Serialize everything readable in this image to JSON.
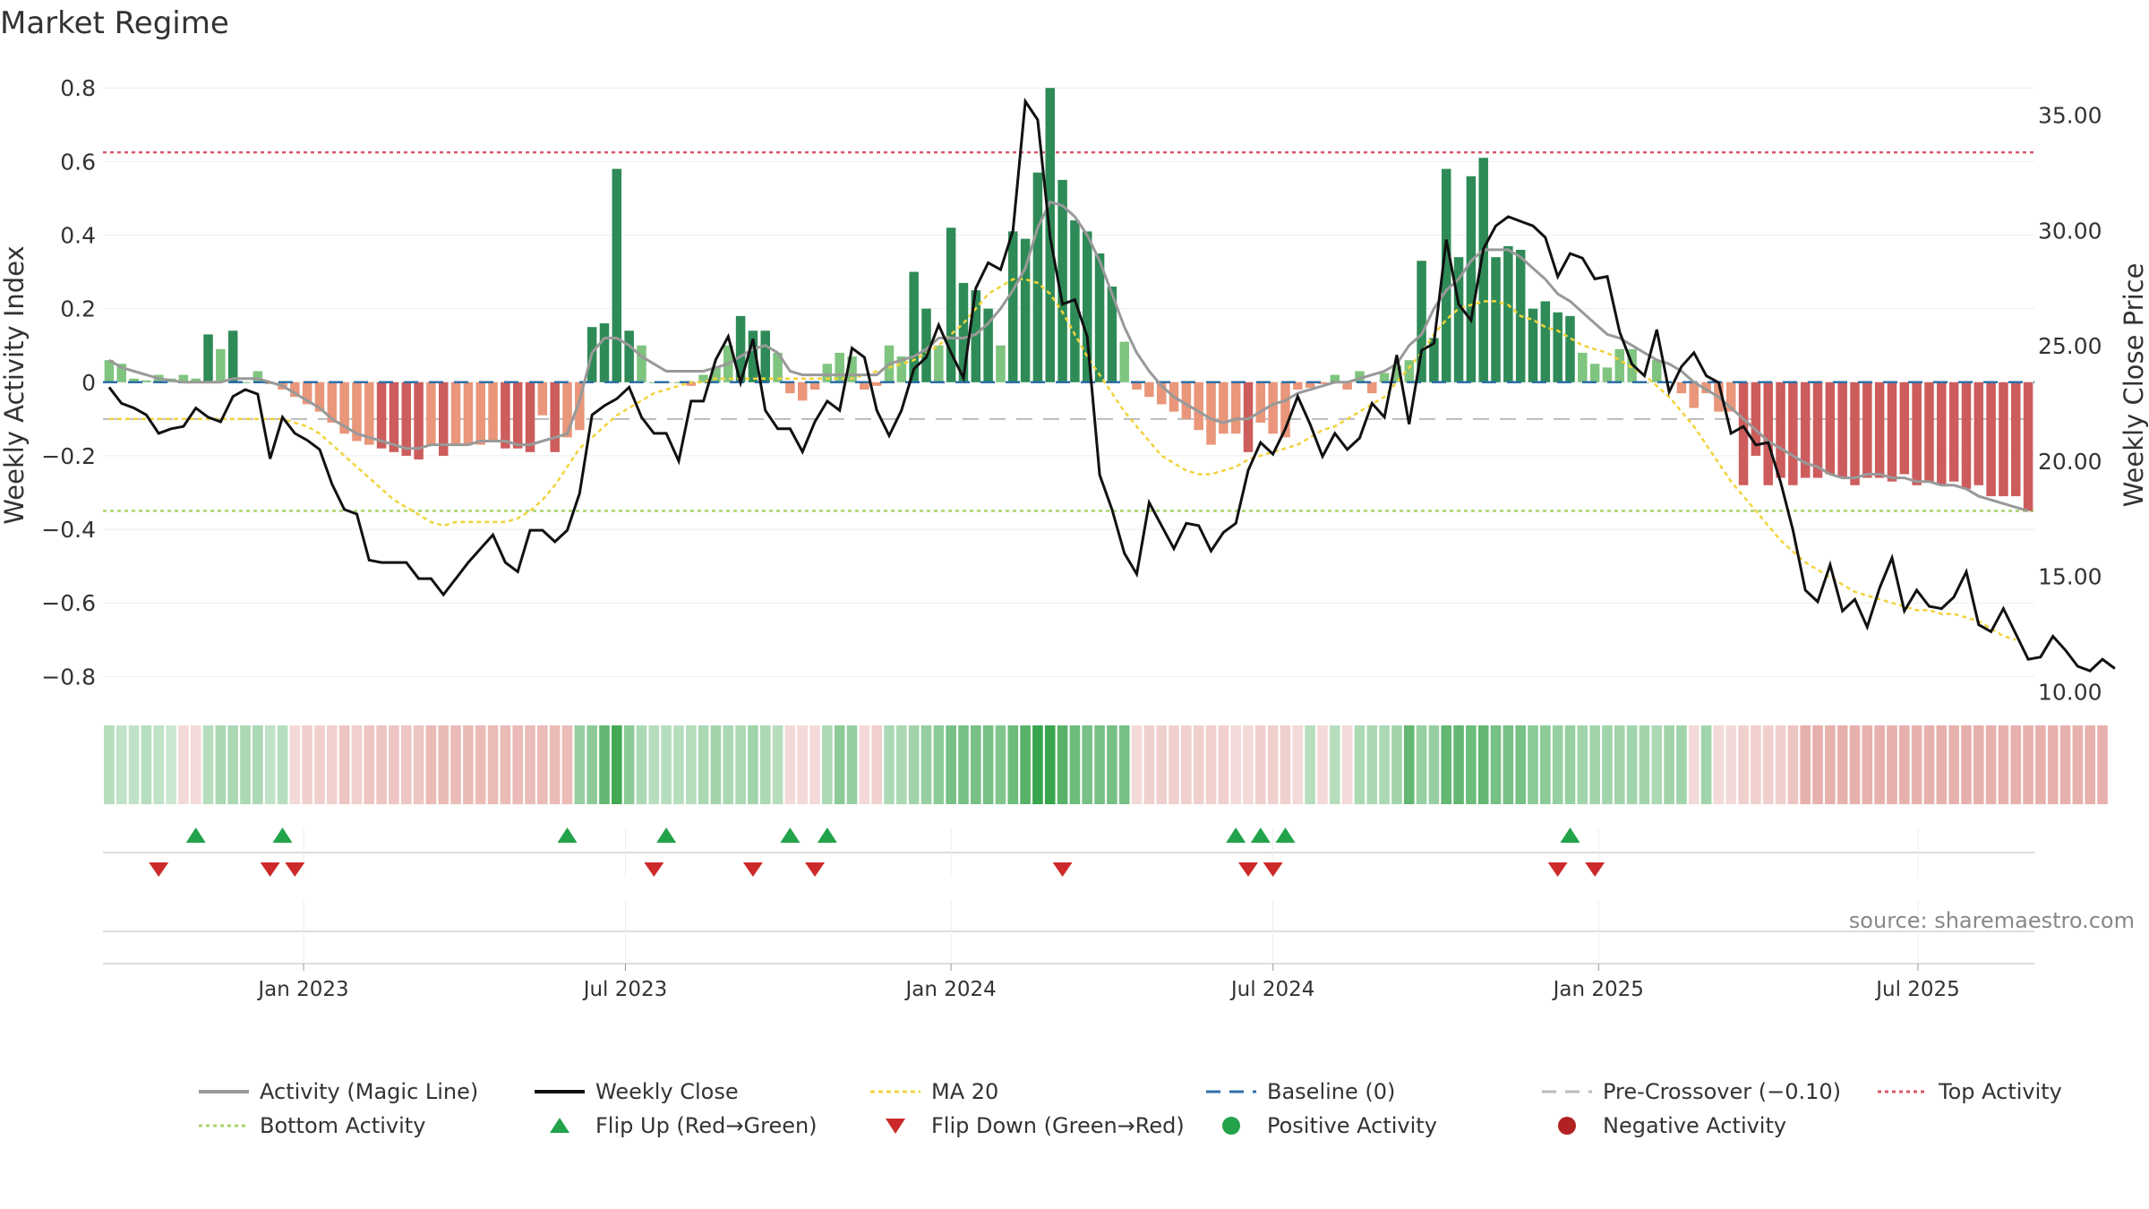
{
  "title": "Market Regime",
  "source": "source: sharemaestro.com",
  "colors": {
    "magic_line": "#999999",
    "weekly_close": "#111111",
    "ma20": "#f2d33c",
    "baseline": "#2e6fa7",
    "pre_crossover": "#bbbbbb",
    "top_activity": "#d9576a",
    "bottom_activity": "#a9d36a",
    "flip_up": "#22a34a",
    "flip_down": "#cc2a2a",
    "pos_dark": "#2e8b57",
    "pos_light": "#7fc47f",
    "neg_dark": "#cd5c5c",
    "neg_light": "#e9967a"
  },
  "legend": {
    "activity": "Activity (Magic Line)",
    "weekly_close": "Weekly Close",
    "ma20": "MA 20",
    "baseline": "Baseline (0)",
    "pre_crossover": "Pre-Crossover (−0.10)",
    "top_activity": "Top Activity",
    "bottom_activity": "Bottom Activity",
    "flip_up": "Flip Up (Red→Green)",
    "flip_down": "Flip Down (Green→Red)",
    "positive_activity": "Positive Activity",
    "negative_activity": "Negative Activity"
  },
  "chart_data": {
    "type": "bar",
    "title": "Market Regime",
    "ylabel": "Weekly Activity Index",
    "y2label": "Weekly Close Price",
    "ylim": [
      -0.86,
      0.82
    ],
    "y2lim": [
      9.7,
      36.5
    ],
    "yticks": [
      0.8,
      0.6,
      0.4,
      0.2,
      0,
      -0.2,
      -0.4,
      -0.6,
      -0.8
    ],
    "ytick_labels": [
      "0.8",
      "0.6",
      "0.4",
      "0.2",
      "0",
      "−0.2",
      "−0.4",
      "−0.6",
      "−0.8"
    ],
    "y2ticks": [
      35,
      30,
      25,
      20,
      15,
      10
    ],
    "y2tick_labels": [
      "35.00",
      "30.00",
      "25.00",
      "20.00",
      "15.00",
      "10.00"
    ],
    "xtick_labels": [
      "Jan 2023",
      "Jul 2023",
      "Jan 2024",
      "Jul 2024",
      "Jan 2025",
      "Jul 2025"
    ],
    "xtick_weeks": [
      15.7,
      41.7,
      68,
      94,
      120.3,
      146.1
    ],
    "reference_lines": {
      "baseline": 0,
      "pre_crossover": -0.1,
      "top_activity": 0.625,
      "bottom_activity": -0.35
    },
    "activity": [
      0.06,
      0.05,
      0.01,
      0.005,
      0.02,
      0.01,
      0.02,
      0.01,
      0.13,
      0.09,
      0.14,
      0.0,
      0.03,
      -0.005,
      -0.02,
      -0.04,
      -0.06,
      -0.08,
      -0.11,
      -0.14,
      -0.16,
      -0.17,
      -0.18,
      -0.19,
      -0.2,
      -0.21,
      -0.17,
      -0.2,
      -0.17,
      -0.17,
      -0.17,
      -0.16,
      -0.18,
      -0.18,
      -0.19,
      -0.09,
      -0.19,
      -0.15,
      -0.13,
      0.15,
      0.16,
      0.58,
      0.14,
      0.1,
      0.0,
      0.0,
      0.0,
      -0.01,
      0.02,
      0.04,
      0.1,
      0.18,
      0.14,
      0.14,
      0.08,
      -0.03,
      -0.05,
      -0.02,
      0.05,
      0.08,
      0.07,
      -0.02,
      -0.01,
      0.1,
      0.07,
      0.3,
      0.2,
      0.1,
      0.42,
      0.27,
      0.25,
      0.2,
      0.1,
      0.41,
      0.39,
      0.57,
      0.8,
      0.55,
      0.44,
      0.41,
      0.35,
      0.26,
      0.11,
      -0.02,
      -0.04,
      -0.06,
      -0.08,
      -0.1,
      -0.13,
      -0.17,
      -0.14,
      -0.14,
      -0.19,
      -0.11,
      -0.14,
      -0.15,
      -0.02,
      -0.015,
      -0.005,
      0.02,
      -0.02,
      0.03,
      -0.03,
      0.025,
      0.045,
      0.06,
      0.33,
      0.12,
      0.58,
      0.34,
      0.56,
      0.61,
      0.34,
      0.37,
      0.36,
      0.2,
      0.22,
      0.19,
      0.18,
      0.08,
      0.05,
      0.04,
      0.09,
      0.09,
      0.0,
      0.06,
      0.0,
      -0.03,
      -0.07,
      -0.03,
      -0.08,
      -0.08,
      -0.28,
      -0.2,
      -0.28,
      -0.26,
      -0.28,
      -0.26,
      -0.26,
      -0.25,
      -0.26,
      -0.28,
      -0.26,
      -0.26,
      -0.27,
      -0.25,
      -0.28,
      -0.27,
      -0.28,
      -0.27,
      -0.29,
      -0.28,
      -0.31,
      -0.31,
      -0.31,
      -0.35
    ],
    "magic_line": [
      0.06,
      0.04,
      0.03,
      0.02,
      0.01,
      0.005,
      0.0,
      0.0,
      0.0,
      0.0,
      0.01,
      0.01,
      0.01,
      0.0,
      -0.01,
      -0.03,
      -0.05,
      -0.07,
      -0.1,
      -0.12,
      -0.14,
      -0.15,
      -0.16,
      -0.17,
      -0.18,
      -0.18,
      -0.17,
      -0.17,
      -0.17,
      -0.17,
      -0.16,
      -0.16,
      -0.16,
      -0.17,
      -0.17,
      -0.16,
      -0.15,
      -0.14,
      -0.05,
      0.08,
      0.12,
      0.12,
      0.1,
      0.07,
      0.05,
      0.03,
      0.03,
      0.03,
      0.03,
      0.04,
      0.05,
      0.07,
      0.09,
      0.1,
      0.08,
      0.03,
      0.02,
      0.02,
      0.02,
      0.02,
      0.02,
      0.02,
      0.02,
      0.05,
      0.06,
      0.07,
      0.09,
      0.12,
      0.12,
      0.12,
      0.13,
      0.16,
      0.2,
      0.25,
      0.31,
      0.42,
      0.49,
      0.48,
      0.45,
      0.4,
      0.33,
      0.24,
      0.15,
      0.08,
      0.03,
      -0.01,
      -0.04,
      -0.06,
      -0.08,
      -0.1,
      -0.11,
      -0.1,
      -0.1,
      -0.08,
      -0.06,
      -0.05,
      -0.03,
      -0.02,
      -0.01,
      0.0,
      0.0,
      0.01,
      0.02,
      0.03,
      0.05,
      0.1,
      0.13,
      0.2,
      0.25,
      0.28,
      0.33,
      0.36,
      0.36,
      0.36,
      0.34,
      0.31,
      0.28,
      0.24,
      0.22,
      0.19,
      0.16,
      0.13,
      0.12,
      0.1,
      0.08,
      0.06,
      0.05,
      0.03,
      0.0,
      -0.02,
      -0.04,
      -0.07,
      -0.1,
      -0.13,
      -0.16,
      -0.18,
      -0.2,
      -0.22,
      -0.23,
      -0.25,
      -0.26,
      -0.26,
      -0.25,
      -0.25,
      -0.26,
      -0.26,
      -0.27,
      -0.27,
      -0.28,
      -0.28,
      -0.29,
      -0.31,
      -0.32,
      -0.33,
      -0.34,
      -0.35
    ],
    "ma20": [
      -0.1,
      -0.1,
      -0.1,
      -0.1,
      -0.1,
      -0.1,
      -0.1,
      -0.1,
      -0.1,
      -0.1,
      -0.1,
      -0.1,
      -0.1,
      -0.1,
      -0.1,
      -0.11,
      -0.12,
      -0.14,
      -0.17,
      -0.2,
      -0.23,
      -0.26,
      -0.29,
      -0.32,
      -0.34,
      -0.36,
      -0.38,
      -0.39,
      -0.38,
      -0.38,
      -0.38,
      -0.38,
      -0.38,
      -0.37,
      -0.35,
      -0.32,
      -0.28,
      -0.23,
      -0.18,
      -0.15,
      -0.12,
      -0.09,
      -0.07,
      -0.05,
      -0.03,
      -0.02,
      -0.01,
      0.0,
      0.0,
      0.01,
      0.01,
      0.01,
      0.01,
      0.01,
      0.01,
      0.01,
      0.01,
      0.01,
      0.01,
      0.01,
      0.01,
      0.02,
      0.03,
      0.04,
      0.05,
      0.06,
      0.08,
      0.1,
      0.13,
      0.16,
      0.2,
      0.24,
      0.26,
      0.28,
      0.28,
      0.27,
      0.24,
      0.19,
      0.13,
      0.07,
      0.02,
      -0.03,
      -0.08,
      -0.12,
      -0.16,
      -0.2,
      -0.22,
      -0.24,
      -0.25,
      -0.25,
      -0.24,
      -0.23,
      -0.21,
      -0.2,
      -0.19,
      -0.18,
      -0.17,
      -0.15,
      -0.13,
      -0.12,
      -0.1,
      -0.08,
      -0.06,
      -0.04,
      0.0,
      0.04,
      0.08,
      0.13,
      0.17,
      0.2,
      0.21,
      0.22,
      0.22,
      0.21,
      0.18,
      0.17,
      0.15,
      0.14,
      0.12,
      0.1,
      0.09,
      0.08,
      0.06,
      0.04,
      0.02,
      -0.01,
      -0.04,
      -0.08,
      -0.12,
      -0.17,
      -0.22,
      -0.27,
      -0.31,
      -0.35,
      -0.39,
      -0.43,
      -0.46,
      -0.49,
      -0.51,
      -0.53,
      -0.55,
      -0.57,
      -0.58,
      -0.59,
      -0.6,
      -0.61,
      -0.62,
      -0.62,
      -0.63,
      -0.63,
      -0.64,
      -0.65,
      -0.67,
      -0.69,
      -0.7
    ],
    "weekly_close": [
      23.2,
      22.5,
      22.3,
      22.0,
      21.2,
      21.4,
      21.5,
      22.3,
      21.9,
      21.7,
      22.8,
      23.1,
      22.9,
      20.1,
      21.9,
      21.2,
      20.9,
      20.5,
      19.0,
      17.9,
      17.7,
      15.7,
      15.6,
      15.6,
      15.6,
      14.9,
      14.9,
      14.2,
      14.9,
      15.6,
      16.2,
      16.8,
      15.6,
      15.2,
      17.0,
      17.0,
      16.5,
      17.0,
      18.6,
      22.0,
      22.4,
      22.7,
      23.2,
      21.9,
      21.2,
      21.2,
      20.0,
      22.6,
      22.6,
      24.4,
      25.4,
      23.4,
      25.3,
      22.2,
      21.4,
      21.4,
      20.4,
      21.7,
      22.6,
      22.2,
      24.9,
      24.5,
      22.2,
      21.1,
      22.2,
      24.0,
      24.5,
      25.9,
      24.7,
      23.6,
      27.5,
      28.6,
      28.3,
      30.0,
      35.6,
      34.8,
      29.7,
      26.8,
      27.0,
      25.4,
      19.4,
      17.9,
      16.0,
      15.1,
      18.2,
      17.2,
      16.2,
      17.3,
      17.2,
      16.1,
      16.9,
      17.3,
      19.6,
      20.8,
      20.3,
      21.4,
      22.8,
      21.6,
      20.2,
      21.2,
      20.5,
      21.0,
      22.5,
      21.9,
      24.6,
      21.6,
      24.8,
      25.1,
      29.6,
      26.8,
      26.1,
      29.2,
      30.2,
      30.6,
      30.4,
      30.2,
      29.7,
      28.0,
      29.0,
      28.8,
      27.9,
      28.0,
      25.6,
      24.2,
      23.7,
      25.7,
      23.0,
      24.1,
      24.7,
      23.7,
      23.4,
      21.2,
      21.5,
      20.7,
      20.8,
      19.1,
      17.0,
      14.4,
      13.9,
      15.5,
      13.5,
      14.0,
      12.8,
      14.5,
      15.8,
      13.5,
      14.4,
      13.7,
      13.6,
      14.1,
      15.2,
      12.9,
      12.6,
      13.6,
      12.5,
      11.4,
      11.5,
      12.4,
      11.8,
      11.1,
      10.9,
      11.4,
      11.0
    ],
    "heat_strip": [
      0.15,
      0.1,
      0.1,
      0.15,
      0.1,
      0.05,
      -0.05,
      -0.05,
      0.15,
      0.2,
      0.2,
      0.2,
      0.2,
      0.1,
      0.15,
      -0.05,
      -0.1,
      -0.1,
      -0.1,
      -0.15,
      -0.1,
      -0.15,
      -0.15,
      -0.15,
      -0.15,
      -0.15,
      -0.2,
      -0.2,
      -0.2,
      -0.2,
      -0.2,
      -0.2,
      -0.2,
      -0.2,
      -0.2,
      -0.2,
      -0.2,
      -0.2,
      0.3,
      0.35,
      0.55,
      0.7,
      0.35,
      0.2,
      0.15,
      0.15,
      0.15,
      0.15,
      0.2,
      0.25,
      0.2,
      0.2,
      0.25,
      0.2,
      0.15,
      -0.05,
      -0.05,
      -0.05,
      0.2,
      0.35,
      0.3,
      -0.05,
      -0.1,
      0.2,
      0.2,
      0.25,
      0.3,
      0.35,
      0.45,
      0.45,
      0.45,
      0.45,
      0.4,
      0.5,
      0.6,
      0.75,
      0.8,
      0.6,
      0.5,
      0.45,
      0.45,
      0.45,
      0.45,
      -0.05,
      -0.1,
      -0.1,
      -0.1,
      -0.1,
      -0.1,
      -0.1,
      -0.1,
      -0.05,
      -0.05,
      -0.1,
      -0.1,
      -0.1,
      -0.05,
      0.15,
      -0.05,
      0.15,
      -0.05,
      0.2,
      0.2,
      0.2,
      0.25,
      0.55,
      0.3,
      0.3,
      0.55,
      0.55,
      0.5,
      0.55,
      0.45,
      0.45,
      0.45,
      0.35,
      0.35,
      0.3,
      0.3,
      0.25,
      0.25,
      0.25,
      0.25,
      0.25,
      0.25,
      0.2,
      0.25,
      0.25,
      -0.05,
      0.25,
      -0.05,
      -0.05,
      -0.1,
      -0.1,
      -0.1,
      -0.1,
      -0.15,
      -0.25,
      -0.25,
      -0.25,
      -0.25,
      -0.25,
      -0.25,
      -0.25,
      -0.25,
      -0.25,
      -0.25,
      -0.25,
      -0.25,
      -0.25,
      -0.25,
      -0.25,
      -0.25,
      -0.25,
      -0.25,
      -0.25,
      -0.25,
      -0.25,
      -0.25,
      -0.25,
      -0.25,
      -0.25
    ],
    "flip_up_weeks": [
      7,
      14,
      37,
      45,
      55,
      58,
      91,
      93,
      95,
      118
    ],
    "flip_down_weeks": [
      4,
      13,
      15,
      44,
      52,
      57,
      77,
      92,
      94,
      117,
      120
    ]
  }
}
